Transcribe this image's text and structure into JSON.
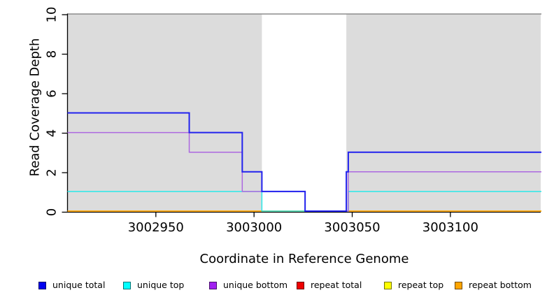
{
  "chart_data": {
    "type": "line",
    "step": true,
    "title": "",
    "xlabel": "Coordinate in Reference Genome",
    "ylabel": "Read Coverage Depth",
    "xlim": [
      3002905,
      3003146
    ],
    "ylim": [
      0,
      10
    ],
    "x_ticks": [
      3002950,
      3003000,
      3003050,
      3003100
    ],
    "y_ticks": [
      0,
      2,
      4,
      6,
      8,
      10
    ],
    "grid": false,
    "panel_color": "#DCDCDC",
    "top_border_color": "#8C8C8C",
    "axis_color": "#000000",
    "background_panels": [
      {
        "name": "shaded-region-left",
        "x_start": 3002905,
        "x_end": 3003004
      },
      {
        "name": "shaded-region-right",
        "x_start": 3003047,
        "x_end": 3003146
      }
    ],
    "series": [
      {
        "name": "repeat total",
        "color": "#EE0000",
        "width": 1.4,
        "steps": [
          [
            3002905,
            0
          ]
        ]
      },
      {
        "name": "repeat top",
        "color": "#FFFF00",
        "width": 1.4,
        "steps": [
          [
            3002905,
            0
          ]
        ]
      },
      {
        "name": "repeat bottom",
        "color": "#FFA500",
        "width": 1.6,
        "steps": [
          [
            3002905,
            0
          ]
        ]
      },
      {
        "name": "unique top",
        "color": "#2AE8E8",
        "width": 1.5,
        "steps": [
          [
            3002905,
            1
          ],
          [
            3003004,
            0
          ],
          [
            3003048,
            1
          ]
        ]
      },
      {
        "name": "unique bottom",
        "color": "#AC68E0",
        "width": 1.5,
        "steps": [
          [
            3002905,
            4
          ],
          [
            3002967,
            3
          ],
          [
            3002994,
            1
          ],
          [
            3003026,
            0
          ],
          [
            3003048,
            2
          ]
        ]
      },
      {
        "name": "unique total",
        "color": "#2222EE",
        "width": 2,
        "steps": [
          [
            3002905,
            5
          ],
          [
            3002967,
            4
          ],
          [
            3002994,
            2
          ],
          [
            3003004,
            1
          ],
          [
            3003026,
            0
          ],
          [
            3003047,
            2
          ],
          [
            3003048,
            3
          ]
        ]
      }
    ],
    "legend": [
      {
        "label": "unique total",
        "color": "#0000EE"
      },
      {
        "label": "unique top",
        "color": "#00FFFF"
      },
      {
        "label": "unique bottom",
        "color": "#A020F0"
      },
      {
        "label": "repeat total",
        "color": "#EE0000"
      },
      {
        "label": "repeat top",
        "color": "#FFFF00"
      },
      {
        "label": "repeat bottom",
        "color": "#FFA500"
      }
    ],
    "legend_position": "bottom"
  }
}
